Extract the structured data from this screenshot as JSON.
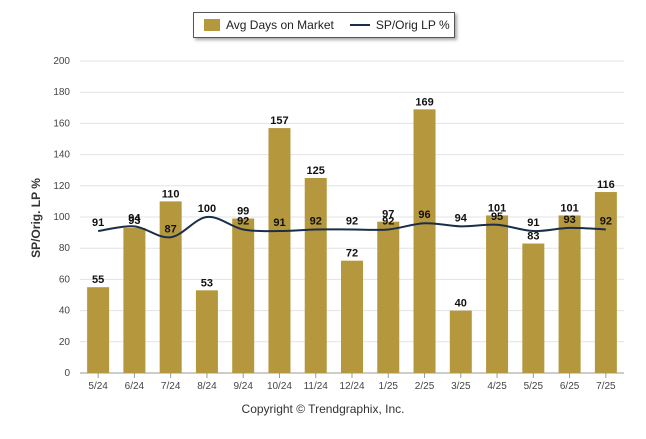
{
  "chart_data": {
    "type": "bar",
    "categories": [
      "5/24",
      "6/24",
      "7/24",
      "8/24",
      "9/24",
      "10/24",
      "11/24",
      "12/24",
      "1/25",
      "2/25",
      "3/25",
      "4/25",
      "5/25",
      "6/25",
      "7/25"
    ],
    "series": [
      {
        "name": "Avg Days on Market",
        "type": "bar",
        "color": "#b5973d",
        "values": [
          55,
          93,
          110,
          53,
          99,
          157,
          125,
          72,
          97,
          169,
          40,
          101,
          83,
          101,
          116
        ]
      },
      {
        "name": "SP/Orig LP %",
        "type": "line",
        "color": "#1a2e4a",
        "values": [
          91,
          94,
          87,
          100,
          92,
          91,
          92,
          92,
          92,
          96,
          94,
          95,
          91,
          93,
          92
        ]
      }
    ],
    "ylabel": "SP/Orig. LP %",
    "ylim": [
      0,
      200
    ],
    "yticks": [
      0,
      20,
      40,
      60,
      80,
      100,
      120,
      140,
      160,
      180,
      200
    ],
    "grid": true,
    "legend_position": "top-center"
  },
  "legend": {
    "bar_label": "Avg Days on Market",
    "line_label": "SP/Orig LP %"
  },
  "copyright": "Copyright © Trendgraphix, Inc."
}
